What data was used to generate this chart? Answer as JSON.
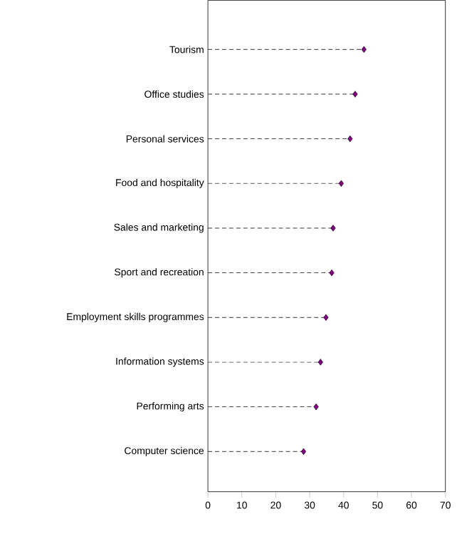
{
  "chart_data": {
    "type": "lollipop",
    "orientation": "horizontal",
    "categories": [
      "Tourism",
      "Office studies",
      "Personal services",
      "Food and hospitality",
      "Sales and marketing",
      "Sport and recreation",
      "Employment skills programmes",
      "Information systems",
      "Performing arts",
      "Computer science"
    ],
    "values": [
      46.0,
      43.4,
      41.9,
      39.3,
      36.9,
      36.5,
      34.8,
      33.2,
      31.9,
      28.2
    ],
    "color": "#800080",
    "line_style": "dashed",
    "marker": "diamond",
    "xlim": [
      0,
      70
    ],
    "xticks": [
      0,
      10,
      20,
      30,
      40,
      50,
      60,
      70
    ],
    "grid": false
  }
}
